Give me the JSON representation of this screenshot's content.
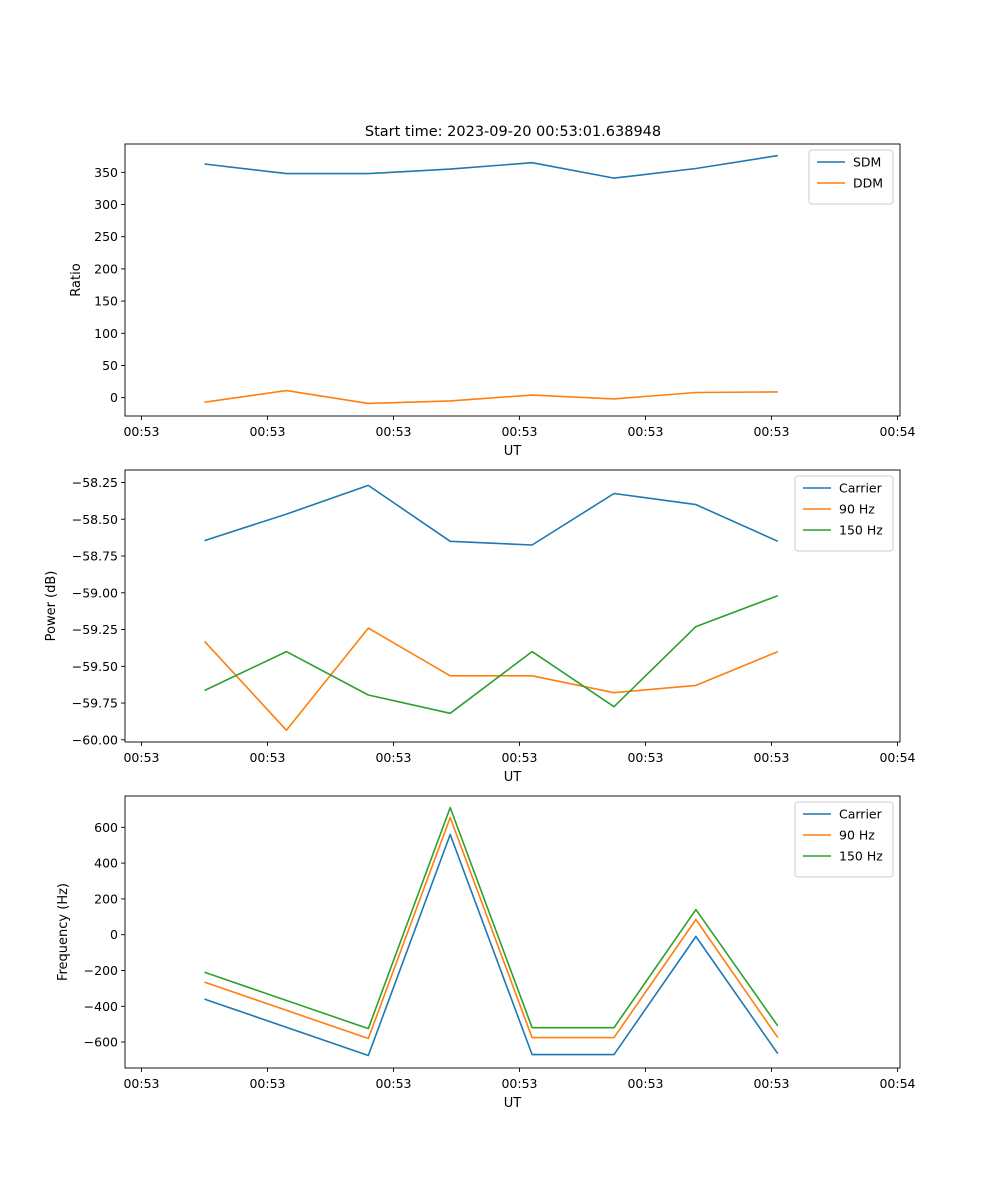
{
  "figure": {
    "title": "Start time: 2023-09-20 00:53:01.638948"
  },
  "colors": {
    "blue": "#1f77b4",
    "orange": "#ff7f0e",
    "green": "#2ca02c"
  },
  "chart_data": [
    {
      "type": "line",
      "name": "ratio",
      "xlabel": "UT",
      "ylabel": "Ratio",
      "xlim": [
        0,
        6
      ],
      "ylim": [
        -28.5,
        394
      ],
      "xticks": [
        "00:53",
        "00:53",
        "00:53",
        "00:53",
        "00:53",
        "00:53",
        "00:54"
      ],
      "yticks": [
        0,
        50,
        100,
        150,
        200,
        250,
        300,
        350
      ],
      "ytick_labels": [
        "0",
        "50",
        "100",
        "150",
        "200",
        "250",
        "300",
        "350"
      ],
      "x": [
        0.5,
        1.15,
        1.8,
        2.45,
        3.1,
        3.75,
        4.4,
        5.05
      ],
      "legend": "top-right",
      "series": [
        {
          "name": "SDM",
          "color": "#1f77b4",
          "values": [
            363,
            348,
            348,
            355,
            365,
            341,
            356,
            376
          ]
        },
        {
          "name": "DDM",
          "color": "#ff7f0e",
          "values": [
            -7,
            11,
            -9,
            -5,
            4,
            -2,
            8,
            9
          ]
        }
      ]
    },
    {
      "type": "line",
      "name": "power",
      "xlabel": "UT",
      "ylabel": "Power (dB)",
      "xlim": [
        0,
        6
      ],
      "ylim": [
        -60.015,
        -58.165
      ],
      "xticks": [
        "00:53",
        "00:53",
        "00:53",
        "00:53",
        "00:53",
        "00:53",
        "00:54"
      ],
      "yticks": [
        -60.0,
        -59.75,
        -59.5,
        -59.25,
        -59.0,
        -58.75,
        -58.5,
        -58.25
      ],
      "ytick_labels": [
        "−60.00",
        "−59.75",
        "−59.50",
        "−59.25",
        "−59.00",
        "−58.75",
        "−58.50",
        "−58.25"
      ],
      "x": [
        0.5,
        1.15,
        1.8,
        2.45,
        3.1,
        3.75,
        4.4,
        5.05
      ],
      "legend": "top-right",
      "series": [
        {
          "name": "Carrier",
          "color": "#1f77b4",
          "values": [
            -58.645,
            -58.465,
            -58.27,
            -58.65,
            -58.675,
            -58.325,
            -58.4,
            -58.65
          ]
        },
        {
          "name": "90 Hz",
          "color": "#ff7f0e",
          "values": [
            -59.33,
            -59.935,
            -59.24,
            -59.565,
            -59.565,
            -59.68,
            -59.63,
            -59.4
          ]
        },
        {
          "name": "150 Hz",
          "color": "#2ca02c",
          "values": [
            -59.665,
            -59.4,
            -59.695,
            -59.82,
            -59.4,
            -59.775,
            -59.23,
            -59.02
          ]
        }
      ]
    },
    {
      "type": "line",
      "name": "frequency",
      "xlabel": "UT",
      "ylabel": "Frequency (Hz)",
      "xlim": [
        0,
        6
      ],
      "ylim": [
        -745,
        775
      ],
      "xticks": [
        "00:53",
        "00:53",
        "00:53",
        "00:53",
        "00:53",
        "00:53",
        "00:54"
      ],
      "yticks": [
        -600,
        -400,
        -200,
        0,
        200,
        400,
        600
      ],
      "ytick_labels": [
        "−600",
        "−400",
        "−200",
        "0",
        "200",
        "400",
        "600"
      ],
      "x": [
        0.5,
        1.8,
        2.45,
        3.1,
        3.75,
        4.4,
        5.05
      ],
      "legend": "top-right",
      "series": [
        {
          "name": "Carrier",
          "color": "#1f77b4",
          "values": [
            -360,
            -675,
            560,
            -670,
            -670,
            -10,
            -665
          ]
        },
        {
          "name": "90 Hz",
          "color": "#ff7f0e",
          "values": [
            -265,
            -580,
            655,
            -575,
            -575,
            85,
            -575
          ]
        },
        {
          "name": "150 Hz",
          "color": "#2ca02c",
          "values": [
            -210,
            -525,
            710,
            -520,
            -520,
            140,
            -510
          ]
        }
      ]
    }
  ]
}
